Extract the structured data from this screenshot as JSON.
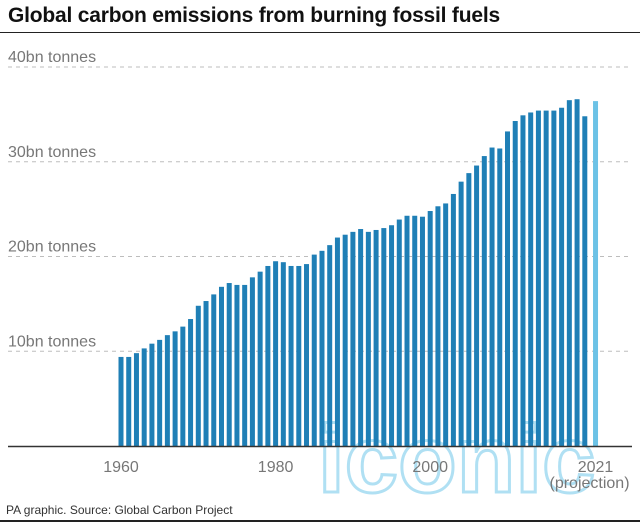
{
  "header": {
    "title": "Global carbon emissions from burning fossil fuels"
  },
  "footer": {
    "source": "PA graphic. Source: Global Carbon Project"
  },
  "watermark": {
    "text": "iconic"
  },
  "colors": {
    "bar": "#1f7fb6",
    "projection_bar": "#6cc2e6",
    "grid": "#bdbdbd",
    "axis": "#333333",
    "watermark": "#8fd3ef"
  },
  "chart_data": {
    "type": "bar",
    "title": "Global carbon emissions from burning fossil fuels",
    "xlabel": "",
    "ylabel": "",
    "ylim": [
      0,
      40
    ],
    "yticks": [
      {
        "value": 10,
        "label": "10bn tonnes"
      },
      {
        "value": 20,
        "label": "20bn tonnes"
      },
      {
        "value": 30,
        "label": "30bn tonnes"
      },
      {
        "value": 40,
        "label": "40bn tonnes"
      }
    ],
    "xticks": [
      {
        "year": 1960,
        "label": "1960"
      },
      {
        "year": 1980,
        "label": "1980"
      },
      {
        "year": 2000,
        "label": "2000"
      },
      {
        "year": 2021,
        "label": "2021",
        "sublabel": "(projection)"
      }
    ],
    "grid": true,
    "gridline_style": "dashed",
    "years": [
      1960,
      1961,
      1962,
      1963,
      1964,
      1965,
      1966,
      1967,
      1968,
      1969,
      1970,
      1971,
      1972,
      1973,
      1974,
      1975,
      1976,
      1977,
      1978,
      1979,
      1980,
      1981,
      1982,
      1983,
      1984,
      1985,
      1986,
      1987,
      1988,
      1989,
      1990,
      1991,
      1992,
      1993,
      1994,
      1995,
      1996,
      1997,
      1998,
      1999,
      2000,
      2001,
      2002,
      2003,
      2004,
      2005,
      2006,
      2007,
      2008,
      2009,
      2010,
      2011,
      2012,
      2013,
      2014,
      2015,
      2016,
      2017,
      2018,
      2019,
      2020,
      2021
    ],
    "values": [
      9.4,
      9.4,
      9.8,
      10.3,
      10.8,
      11.2,
      11.7,
      12.1,
      12.6,
      13.4,
      14.8,
      15.3,
      16.0,
      16.8,
      17.2,
      17.0,
      17.0,
      17.8,
      18.4,
      19.0,
      19.5,
      19.4,
      19.0,
      19.0,
      19.2,
      20.2,
      20.6,
      21.2,
      22.0,
      22.3,
      22.6,
      22.9,
      22.6,
      22.8,
      23.0,
      23.3,
      23.9,
      24.3,
      24.3,
      24.2,
      24.8,
      25.3,
      25.6,
      26.6,
      27.9,
      28.8,
      29.6,
      30.6,
      31.5,
      31.4,
      33.2,
      34.3,
      34.9,
      35.2,
      35.4,
      35.4,
      35.4,
      35.7,
      36.5,
      36.6,
      34.8,
      36.4
    ],
    "projection_year": 2021
  }
}
